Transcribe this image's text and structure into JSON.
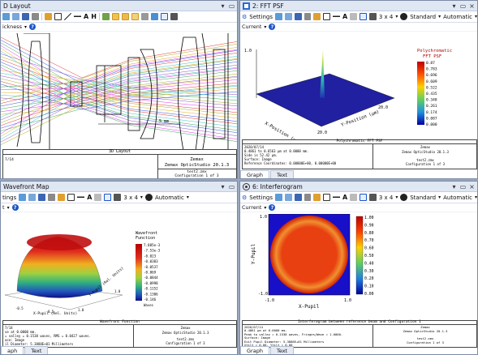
{
  "windows": {
    "layout": {
      "title": "D Layout",
      "subbar_label": "ickness",
      "scale_label": "5 mm",
      "caption": "3D Layout",
      "info_date": "7/14",
      "company": "Zemax",
      "product": "Zemax OpticStudio 20.1.3",
      "file": "test2.zmx",
      "config": "Configuration 1 of 3"
    },
    "fft_psf": {
      "title": "2: FFT PSF",
      "settings_label": "Settings",
      "grid_label": "3 x 4",
      "standard_label": "Standard",
      "automatic_label": "Automatic",
      "subbar_label": "Current",
      "legend_title_1": "Polychromatic",
      "legend_title_2": "FFT PSF",
      "legend_values": [
        "0.87",
        "0.783",
        "0.696",
        "0.609",
        "0.522",
        "0.435",
        "0.348",
        "0.261",
        "0.174",
        "0.087",
        "0.000"
      ],
      "axis_top": "1.0",
      "axis_x_label": "X-Position (µm)",
      "axis_y_label": "Y-Position (µm)",
      "axis_x_tick": "20.0",
      "axis_y_tick": "20.0",
      "caption": "Polychromatic FFT PSF",
      "info_lines": [
        "2020/07/14",
        "0.4861 to 0.6563 µm at 0.0000 mm.",
        "Side is 52.42 µm.",
        "Surface: Image",
        "Reference Coordinates: 0.00000E+00, 0.00000E+00"
      ],
      "company": "Zemax",
      "product": "Zemax OpticStudio 20.1.3",
      "file": "test2.zmx",
      "config": "Configuration 1 of 3",
      "tabs": [
        "Graph",
        "Text"
      ]
    },
    "wavefront": {
      "title": "Wavefront Map",
      "subbar_label": "t",
      "grid_label": "3 x 4",
      "automatic_label": "Automatic",
      "legend_title_1": "Wavefront",
      "legend_title_2": "Function",
      "legend_values": [
        "7.885e-3",
        "-7.53e-3",
        "-0.023",
        "-0.0383",
        "-0.0537",
        "-0.069",
        "-0.0844",
        "-0.0998",
        "-0.1152",
        "-0.1306",
        "-0.146"
      ],
      "legend_unit": "Waves",
      "axis_x_label": "X-Pupil (Rel. Units)",
      "axis_y_label": "Y-Pupil (Rel. Units)",
      "axis_ticks": [
        "-0.5",
        "0.5",
        "1.0",
        "1.0"
      ],
      "caption": "Wavefront Function",
      "info_lines": [
        "7/14",
        "ve at 0.0000 mm.",
        "= valley = 0.1538 waves, RMS = 0.0427 waves.",
        "ace: Image",
        "il Diameter: 5.3888E+01 Millimeters"
      ],
      "company": "Zemax",
      "product": "Zemax OpticStudio 20.1.3",
      "file": "test2.zmx",
      "config": "Configuration 1 of 3",
      "tabs": [
        "aph",
        "Text"
      ]
    },
    "interferogram": {
      "title": "6: Interferogram",
      "settings_label": "Settings",
      "grid_label": "3 x 4",
      "standard_label": "Standard",
      "automatic_label": "Automatic",
      "subbar_label": "Current",
      "legend_values": [
        "1.00",
        "0.90",
        "0.80",
        "0.70",
        "0.60",
        "0.50",
        "0.40",
        "0.30",
        "0.20",
        "0.10",
        "0.00"
      ],
      "axis_y_label": "Y-Pupil",
      "axis_x_label": "X-Pupil",
      "axis_min": "-1.0",
      "axis_max": "1.0",
      "caption": "Interferogram between reference beam and Configuration 1",
      "info_lines": [
        "2020/07/14",
        "0.4861 µm at 0.0000 mm.",
        "Peak to valley = 0.1538 waves, Fringes/Wave = 1.0000.",
        "Surface: Image",
        "Exit Pupil Diameter: 5.3888E+01 Millimeters",
        "Xtilt = 0.00, Ytilt = 0.00"
      ],
      "company": "Zemax",
      "product": "Zemax OpticStudio 20.1.3",
      "file": "test2.zmx",
      "config": "Configuration 1 of 3",
      "tabs": [
        "Graph",
        "Text"
      ]
    },
    "layout_toolbar": {
      "settings_label": "tings"
    }
  },
  "colors": {
    "window_border": "#7b8aa5",
    "titlebar_bg": "#dfe7f3",
    "accent_blue": "#1a56c9"
  }
}
